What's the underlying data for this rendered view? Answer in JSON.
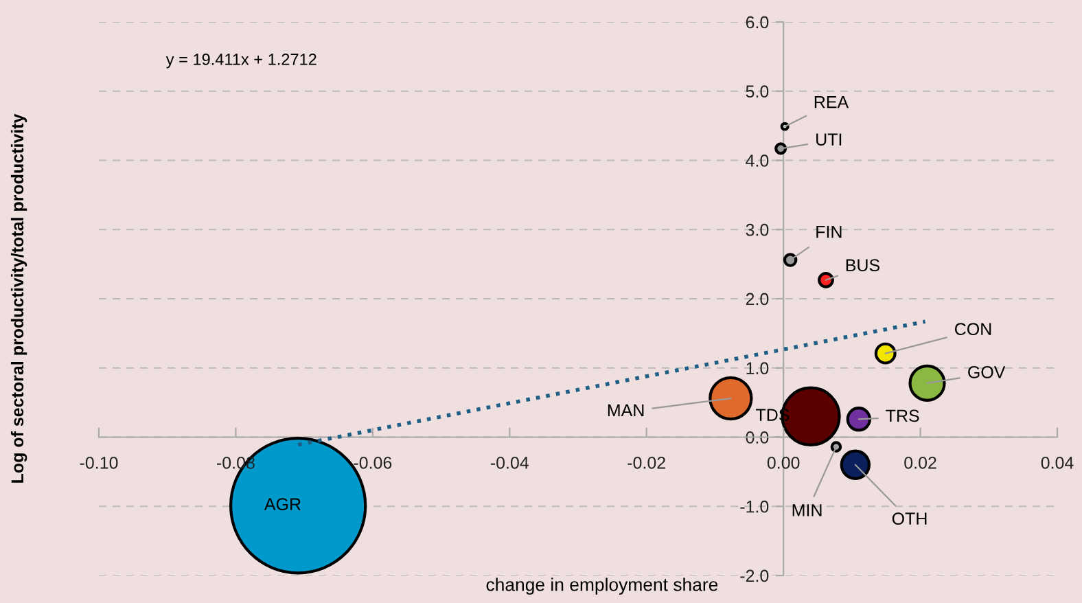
{
  "chart_data": {
    "type": "bubble",
    "xlabel": "change in employment share",
    "ylabel": "Log of sectoral productivity/total productivity",
    "xlim": [
      -0.1,
      0.04
    ],
    "ylim": [
      -2.0,
      6.0
    ],
    "xticks": [
      {
        "value": -0.1,
        "label": "-0.10"
      },
      {
        "value": -0.08,
        "label": "-0.08"
      },
      {
        "value": -0.06,
        "label": "-0.06"
      },
      {
        "value": -0.04,
        "label": "-0.04"
      },
      {
        "value": -0.02,
        "label": "-0.02"
      },
      {
        "value": 0.0,
        "label": "0.00"
      },
      {
        "value": 0.02,
        "label": "0.02"
      },
      {
        "value": 0.04,
        "label": "0.04"
      }
    ],
    "yticks": [
      {
        "value": -2,
        "label": "-2.0"
      },
      {
        "value": -1,
        "label": "-1.0"
      },
      {
        "value": 0,
        "label": "0.0"
      },
      {
        "value": 1,
        "label": "1.0"
      },
      {
        "value": 2,
        "label": "2.0"
      },
      {
        "value": 3,
        "label": "3.0"
      },
      {
        "value": 4,
        "label": "4.0"
      },
      {
        "value": 5,
        "label": "5.0"
      },
      {
        "value": 6,
        "label": "6.0"
      }
    ],
    "grid": "y",
    "legend": false,
    "marker": "circle",
    "series": [
      {
        "x": [
          0.0002,
          -0.0004,
          0.001,
          0.0062,
          0.0149,
          0.021,
          -0.0077,
          0.004,
          0.011,
          0.0077,
          0.0105,
          -0.0709
        ],
        "values": [
          4.49,
          4.17,
          2.56,
          2.27,
          1.21,
          0.78,
          0.56,
          0.3,
          0.26,
          -0.14,
          -0.4,
          -0.99
        ],
        "sizes": [
          0.002,
          0.005,
          0.007,
          0.01,
          0.02,
          0.065,
          0.094,
          0.18,
          0.027,
          0.004,
          0.042,
          1
        ],
        "colors": [
          "#eeeeee",
          "#999999",
          "#999999",
          "#ff2020",
          "#f2e500",
          "#8bb840",
          "#e06a2c",
          "#5a0000",
          "#7030a0",
          "#aaaaaa",
          "#0a1f5c",
          "#0099cc"
        ]
      },
      {
        "type": "line",
        "marker": "none",
        "color": "#1f5f86",
        "line_style": "dotted",
        "x": [
          -0.0709,
          0.0207
        ],
        "values": [
          -0.11,
          1.67
        ]
      }
    ],
    "annotations": [
      {
        "text": "REA",
        "x": 0.0002,
        "y": 4.49
      },
      {
        "text": "UTI",
        "x": -0.0004,
        "y": 4.17
      },
      {
        "text": "FIN",
        "x": 0.001,
        "y": 2.56
      },
      {
        "text": "BUS",
        "x": 0.0062,
        "y": 2.27
      },
      {
        "text": "CON",
        "x": 0.0149,
        "y": 1.21
      },
      {
        "text": "GOV",
        "x": 0.021,
        "y": 0.78
      },
      {
        "text": "MAN",
        "x": -0.0077,
        "y": 0.56
      },
      {
        "text": "TDS",
        "x": 0.004,
        "y": 0.3
      },
      {
        "text": "TRS",
        "x": 0.011,
        "y": 0.26
      },
      {
        "text": "MIN",
        "x": 0.0077,
        "y": -0.14
      },
      {
        "text": "OTH",
        "x": 0.0105,
        "y": -0.4
      },
      {
        "text": "AGR",
        "x": -0.0709,
        "y": -0.99
      },
      "y = 19.411x + 1.2712"
    ]
  }
}
